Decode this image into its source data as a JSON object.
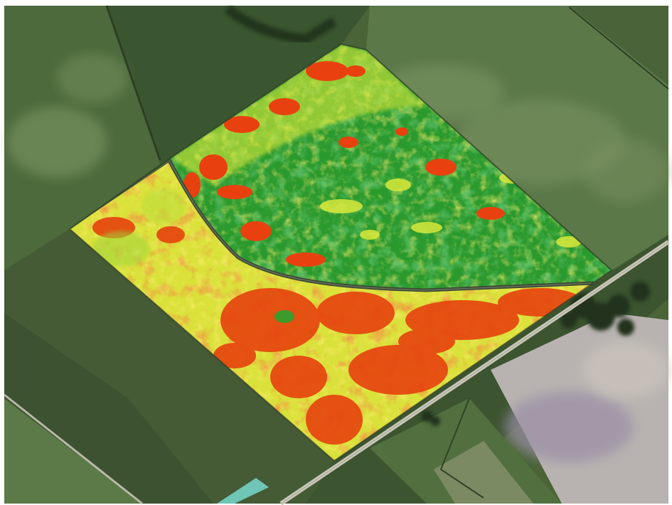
{
  "scene": {
    "description_visible_text": "",
    "palette": {
      "frame": "#ffffff",
      "field_dark": "#2f4a2a",
      "field_mid": "#4f6b3f",
      "field_light": "#7f9660",
      "field_pale": "#a7b795",
      "field_lavender": "#9f95a6",
      "road": "#c7c7b8",
      "water": "#6fc2b4",
      "ndvi_high": "#1f8f2a",
      "ndvi_midhigh": "#58c02f",
      "ndvi_mid": "#c9e83a",
      "ndvi_low": "#f3e12a",
      "ndvi_stress": "#f0a01c",
      "ndvi_bad": "#e8410f",
      "trees": "#26381f",
      "berm": "#3e4a36"
    }
  }
}
